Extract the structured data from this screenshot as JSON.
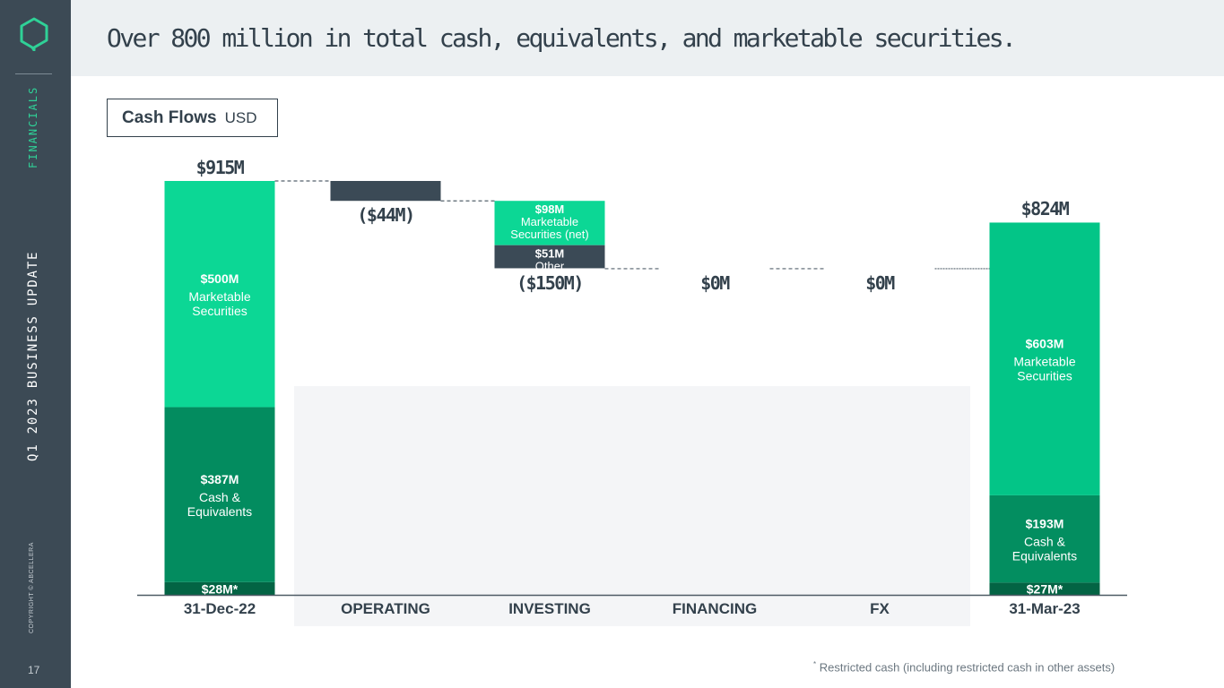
{
  "header": {
    "title": "Over 800 million in total cash, equivalents, and marketable securities."
  },
  "sidebar": {
    "section": "FINANCIALS",
    "deck_title": "Q1 2023 BUSINESS UPDATE",
    "copyright": "COPYRIGHT © ABCELLERA",
    "page_number": "17"
  },
  "legend": {
    "title": "Cash Flows",
    "unit": "USD"
  },
  "footnote": {
    "marker": "*",
    "text": "Restricted cash (including restricted cash in other assets)"
  },
  "colors": {
    "marketable": "#0cd795",
    "cash": "#038c5f",
    "restricted": "#036444",
    "marketable_end": "#03c587",
    "cash_end": "#038e60",
    "negative": "#3b4a56",
    "flow_band": "#f4f5f7",
    "axis": "#4e5b65",
    "text_dark": "#33414c"
  },
  "chart_data": {
    "type": "waterfall",
    "unit": "USD millions",
    "ylim": [
      0,
      915
    ],
    "categories": [
      "31-Dec-22",
      "OPERATING",
      "INVESTING",
      "FINANCING",
      "FX",
      "31-Mar-23"
    ],
    "totals": [
      {
        "category": "31-Dec-22",
        "total": 915,
        "total_label": "$915M",
        "segments": [
          {
            "name": "Restricted cash",
            "value": 28,
            "label": "$28M*",
            "desc": [],
            "color_key": "restricted"
          },
          {
            "name": "Cash & Equivalents",
            "value": 387,
            "label": "$387M",
            "desc": [
              "Cash &",
              "Equivalents"
            ],
            "color_key": "cash"
          },
          {
            "name": "Marketable Securities",
            "value": 500,
            "label": "$500M",
            "desc": [
              "Marketable",
              "Securities"
            ],
            "color_key": "marketable"
          }
        ]
      },
      {
        "category": "31-Mar-23",
        "total": 824,
        "total_label": "$824M",
        "segments": [
          {
            "name": "Restricted cash",
            "value": 27,
            "label": "$27M*",
            "desc": [],
            "color_key": "restricted"
          },
          {
            "name": "Cash & Equivalents",
            "value": 193,
            "label": "$193M",
            "desc": [
              "Cash &",
              "Equivalents"
            ],
            "color_key": "cash_end"
          },
          {
            "name": "Marketable Securities",
            "value": 603,
            "label": "$603M",
            "desc": [
              "Marketable",
              "Securities"
            ],
            "color_key": "marketable_end"
          }
        ]
      }
    ],
    "flows": [
      {
        "category": "OPERATING",
        "value": -44,
        "label": "($44M)",
        "segments": [
          {
            "name": "Operating",
            "value": 44,
            "label": "",
            "desc": [],
            "color_key": "negative"
          }
        ]
      },
      {
        "category": "INVESTING",
        "value": -150,
        "label": "($150M)",
        "segments": [
          {
            "name": "Marketable Securities (net)",
            "value": 98,
            "label": "$98M",
            "desc": [
              "Marketable",
              "Securities (net)"
            ],
            "color_key": "marketable"
          },
          {
            "name": "Other",
            "value": 51,
            "label": "$51M",
            "desc": [
              "Other"
            ],
            "color_key": "negative"
          }
        ]
      },
      {
        "category": "FINANCING",
        "value": 0,
        "label": "$0M",
        "segments": []
      },
      {
        "category": "FX",
        "value": 0,
        "label": "$0M",
        "segments": []
      }
    ]
  }
}
